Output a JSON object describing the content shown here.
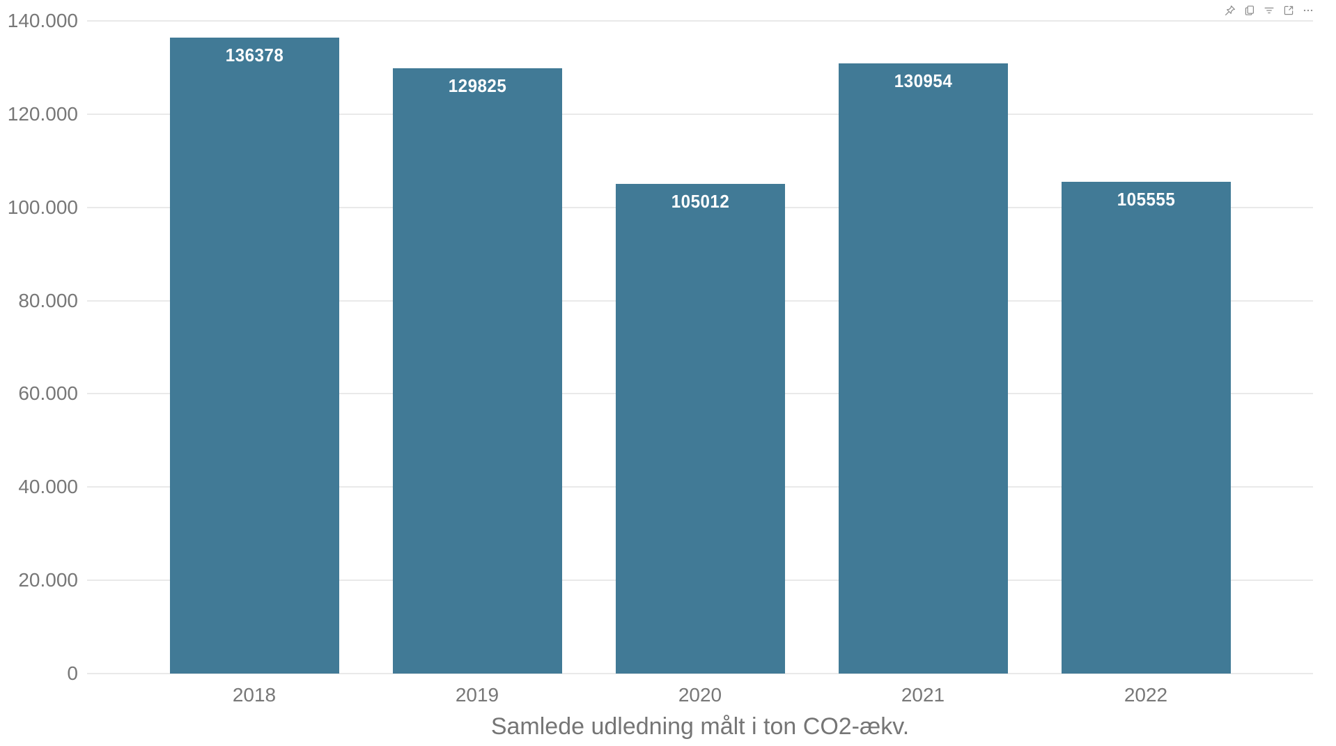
{
  "visual_header": {
    "icons": [
      "pin",
      "copy",
      "filter",
      "focus-mode",
      "more-options"
    ],
    "icon_color": "#8a8a8a"
  },
  "chart_data": {
    "type": "bar",
    "categories": [
      "2018",
      "2019",
      "2020",
      "2021",
      "2022"
    ],
    "values": [
      136378,
      129825,
      105012,
      130954,
      105555
    ],
    "data_labels": [
      "136378",
      "129825",
      "105012",
      "130954",
      "105555"
    ],
    "title": "",
    "xlabel": "Samlede udledning målt i ton CO2-ækv.",
    "ylabel": "",
    "ylim": [
      0,
      140000
    ],
    "grid": true,
    "legend": "none",
    "y_ticks": [
      {
        "label": "140.000",
        "value": 140000
      },
      {
        "label": "120.000",
        "value": 120000
      },
      {
        "label": "100.000",
        "value": 100000
      },
      {
        "label": "80.000",
        "value": 80000
      },
      {
        "label": "60.000",
        "value": 60000
      },
      {
        "label": "40.000",
        "value": 40000
      },
      {
        "label": "20.000",
        "value": 20000
      },
      {
        "label": "0",
        "value": 0
      }
    ],
    "bar_color": "#417a96",
    "data_label_color": "#ffffff",
    "axis_label_color": "#777777",
    "grid_color": "#e9e9e9"
  }
}
